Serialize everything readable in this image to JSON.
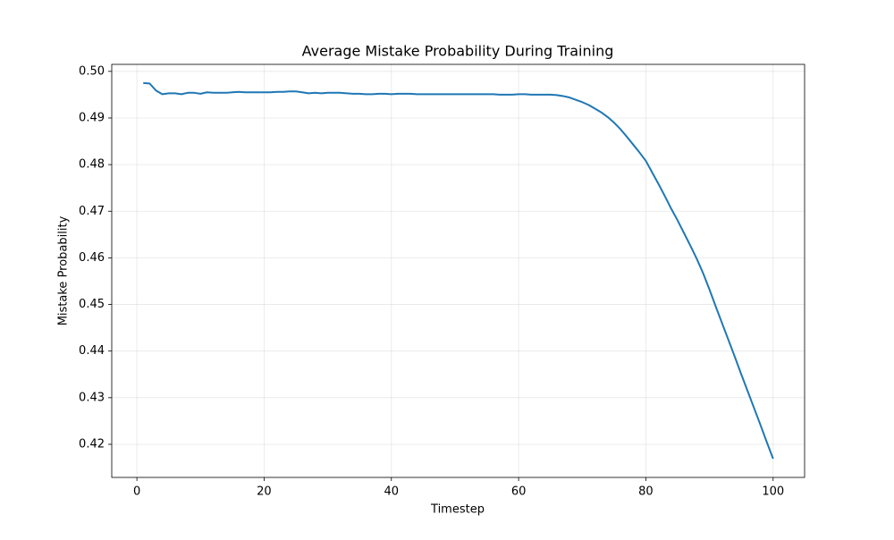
{
  "chart_data": {
    "type": "line",
    "title": "Average Mistake Probability During Training",
    "x_label": "Timestep",
    "y_label": "Mistake Probability",
    "x": [
      1,
      2,
      3,
      4,
      5,
      6,
      7,
      8,
      9,
      10,
      11,
      12,
      13,
      14,
      15,
      16,
      17,
      18,
      19,
      20,
      21,
      22,
      23,
      24,
      25,
      26,
      27,
      28,
      29,
      30,
      31,
      32,
      33,
      34,
      35,
      36,
      37,
      38,
      39,
      40,
      41,
      42,
      43,
      44,
      45,
      46,
      47,
      48,
      49,
      50,
      51,
      52,
      53,
      54,
      55,
      56,
      57,
      58,
      59,
      60,
      61,
      62,
      63,
      64,
      65,
      66,
      67,
      68,
      69,
      70,
      71,
      72,
      73,
      74,
      75,
      76,
      77,
      78,
      79,
      80,
      81,
      82,
      83,
      84,
      85,
      86,
      87,
      88,
      89,
      90,
      91,
      92,
      93,
      94,
      95,
      96,
      97,
      98,
      99,
      100
    ],
    "series": [
      {
        "color": "#1f77b4",
        "values": [
          0.4975,
          0.4974,
          0.4959,
          0.4951,
          0.4953,
          0.4953,
          0.4951,
          0.4954,
          0.4954,
          0.4952,
          0.4955,
          0.4954,
          0.4954,
          0.4954,
          0.4955,
          0.4956,
          0.4955,
          0.4955,
          0.4955,
          0.4955,
          0.4955,
          0.4956,
          0.4956,
          0.4957,
          0.4957,
          0.4955,
          0.4953,
          0.4954,
          0.4953,
          0.4954,
          0.4954,
          0.4954,
          0.4953,
          0.4952,
          0.4952,
          0.4951,
          0.4951,
          0.4952,
          0.4952,
          0.4951,
          0.4952,
          0.4952,
          0.4952,
          0.4951,
          0.4951,
          0.4951,
          0.4951,
          0.4951,
          0.4951,
          0.4951,
          0.4951,
          0.4951,
          0.4951,
          0.4951,
          0.4951,
          0.4951,
          0.495,
          0.495,
          0.495,
          0.4951,
          0.4951,
          0.495,
          0.495,
          0.495,
          0.495,
          0.4949,
          0.4947,
          0.4944,
          0.4939,
          0.4934,
          0.4928,
          0.492,
          0.4912,
          0.4902,
          0.489,
          0.4876,
          0.486,
          0.4843,
          0.4826,
          0.4808,
          0.4783,
          0.4758,
          0.4732,
          0.4705,
          0.468,
          0.4653,
          0.4626,
          0.4598,
          0.4567,
          0.4532,
          0.4495,
          0.4459,
          0.4423,
          0.4387,
          0.435,
          0.4314,
          0.4278,
          0.4242,
          0.4205,
          0.4169
        ]
      }
    ],
    "xlim": [
      -3.95,
      104.95
    ],
    "xticks": [
      0,
      20,
      40,
      60,
      80,
      100
    ],
    "ylim": [
      0.4129,
      0.5015
    ],
    "yticks": [
      0.42,
      0.43,
      0.44,
      0.45,
      0.46,
      0.47,
      0.48,
      0.49,
      {
        "value": 0.5,
        "label": "0.50"
      }
    ],
    "grid": true
  }
}
